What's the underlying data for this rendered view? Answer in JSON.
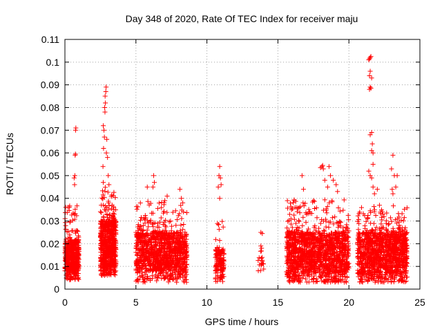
{
  "chart_data": {
    "type": "scatter",
    "title": "Day 348 of 2020, Rate Of TEC Index for receiver maju",
    "xlabel": "GPS time / hours",
    "ylabel": "ROTI / TECUs",
    "xlim": [
      0,
      25
    ],
    "ylim": [
      0,
      0.11
    ],
    "x_ticks": [
      0,
      5,
      10,
      15,
      20,
      25
    ],
    "x_tick_labels": [
      "0",
      "5",
      "10",
      "15",
      "20",
      "25"
    ],
    "y_ticks": [
      0,
      0.01,
      0.02,
      0.03,
      0.04,
      0.05,
      0.06,
      0.07,
      0.08,
      0.09,
      0.1,
      0.11
    ],
    "y_tick_labels": [
      "0",
      "0.01",
      "0.02",
      "0.03",
      "0.04",
      "0.05",
      "0.06",
      "0.07",
      "0.08",
      "0.09",
      "0.1",
      "0.11"
    ],
    "grid": true,
    "marker": "+",
    "color": "#ff0000",
    "series": [
      {
        "name": "ROTI",
        "clusters": [
          {
            "x_range": [
              0.0,
              1.0
            ],
            "count": 500,
            "y_min": 0.004,
            "y_typ": [
              0.008,
              0.022
            ],
            "y_tail": 0.037
          },
          {
            "x_range": [
              2.5,
              3.6
            ],
            "count": 650,
            "y_min": 0.006,
            "y_typ": [
              0.01,
              0.03
            ],
            "y_tail": 0.045
          },
          {
            "x_range": [
              5.0,
              8.6
            ],
            "count": 1100,
            "y_min": 0.003,
            "y_typ": [
              0.008,
              0.025
            ],
            "y_tail": 0.04
          },
          {
            "x_range": [
              10.6,
              11.2
            ],
            "count": 140,
            "y_min": 0.003,
            "y_typ": [
              0.008,
              0.018
            ],
            "y_tail": 0.03
          },
          {
            "x_range": [
              13.6,
              14.0
            ],
            "count": 18,
            "y_min": 0.004,
            "y_typ": [
              0.008,
              0.015
            ],
            "y_tail": 0.025
          },
          {
            "x_range": [
              15.6,
              20.0
            ],
            "count": 1400,
            "y_min": 0.003,
            "y_typ": [
              0.007,
              0.025
            ],
            "y_tail": 0.04
          },
          {
            "x_range": [
              20.6,
              24.1
            ],
            "count": 1200,
            "y_min": 0.003,
            "y_typ": [
              0.007,
              0.025
            ],
            "y_tail": 0.037
          }
        ],
        "points": [
          [
            0.75,
            0.07
          ],
          [
            0.77,
            0.071
          ],
          [
            0.72,
            0.059
          ],
          [
            0.74,
            0.0595
          ],
          [
            0.7,
            0.05
          ],
          [
            0.68,
            0.046
          ],
          [
            0.65,
            0.049
          ],
          [
            2.7,
            0.072
          ],
          [
            2.75,
            0.07
          ],
          [
            2.8,
            0.08
          ],
          [
            2.85,
            0.082
          ],
          [
            2.9,
            0.089
          ],
          [
            2.88,
            0.087
          ],
          [
            2.83,
            0.085
          ],
          [
            2.82,
            0.078
          ],
          [
            2.78,
            0.067
          ],
          [
            2.72,
            0.062
          ],
          [
            2.95,
            0.066
          ],
          [
            2.92,
            0.06
          ],
          [
            3.0,
            0.058
          ],
          [
            2.68,
            0.054
          ],
          [
            3.05,
            0.05
          ],
          [
            2.7,
            0.047
          ],
          [
            3.1,
            0.046
          ],
          [
            6.2,
            0.045
          ],
          [
            6.25,
            0.05
          ],
          [
            6.3,
            0.047
          ],
          [
            5.8,
            0.045
          ],
          [
            7.2,
            0.041
          ],
          [
            8.1,
            0.044
          ],
          [
            8.2,
            0.04
          ],
          [
            8.3,
            0.038
          ],
          [
            10.9,
            0.054
          ],
          [
            10.85,
            0.05
          ],
          [
            10.95,
            0.049
          ],
          [
            11.0,
            0.046
          ],
          [
            10.8,
            0.045
          ],
          [
            10.9,
            0.04
          ],
          [
            13.8,
            0.025
          ],
          [
            13.9,
            0.0245
          ],
          [
            13.8,
            0.019
          ],
          [
            13.85,
            0.018
          ],
          [
            16.7,
            0.05
          ],
          [
            16.8,
            0.044
          ],
          [
            17.5,
            0.039
          ],
          [
            18.0,
            0.0535
          ],
          [
            18.1,
            0.054
          ],
          [
            18.2,
            0.053
          ],
          [
            18.15,
            0.0545
          ],
          [
            18.3,
            0.048
          ],
          [
            18.6,
            0.054
          ],
          [
            18.7,
            0.05
          ],
          [
            18.9,
            0.048
          ],
          [
            18.5,
            0.045
          ],
          [
            19.1,
            0.046
          ],
          [
            19.2,
            0.043
          ],
          [
            21.4,
            0.101
          ],
          [
            21.5,
            0.102
          ],
          [
            21.45,
            0.1015
          ],
          [
            21.55,
            0.1025
          ],
          [
            21.5,
            0.096
          ],
          [
            21.45,
            0.094
          ],
          [
            21.6,
            0.093
          ],
          [
            21.5,
            0.089
          ],
          [
            21.45,
            0.088
          ],
          [
            21.55,
            0.0885
          ],
          [
            21.6,
            0.069
          ],
          [
            21.5,
            0.068
          ],
          [
            21.65,
            0.064
          ],
          [
            21.6,
            0.061
          ],
          [
            21.7,
            0.06
          ],
          [
            21.7,
            0.055
          ],
          [
            21.4,
            0.052
          ],
          [
            21.5,
            0.05
          ],
          [
            21.6,
            0.049
          ],
          [
            21.7,
            0.045
          ],
          [
            22.0,
            0.044
          ],
          [
            21.8,
            0.042
          ],
          [
            23.1,
            0.059
          ],
          [
            23.0,
            0.053
          ],
          [
            23.2,
            0.05
          ],
          [
            23.4,
            0.05
          ],
          [
            23.3,
            0.045
          ],
          [
            23.05,
            0.044
          ],
          [
            23.1,
            0.042
          ]
        ]
      }
    ]
  }
}
